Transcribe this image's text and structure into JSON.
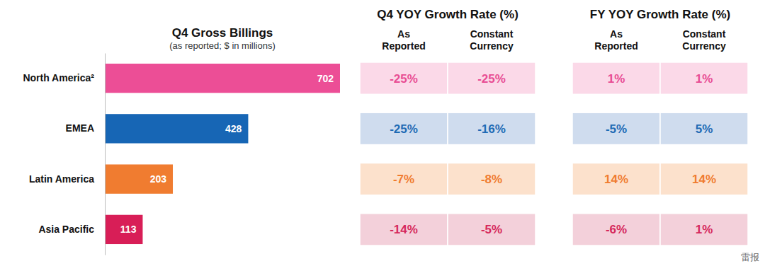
{
  "chart_data": {
    "type": "bar",
    "title": "Q4 Gross Billings",
    "subtitle": "(as reported; $ in millions)",
    "orientation": "horizontal",
    "categories": [
      "North America²",
      "EMEA",
      "Latin America",
      "Asia Pacific"
    ],
    "values": [
      702,
      428,
      203,
      113
    ],
    "colors": [
      "#ec4e96",
      "#1766b5",
      "#f07c30",
      "#d81e57"
    ],
    "xlim": [
      0,
      702
    ],
    "data_labels": true,
    "tick_labels": "y"
  },
  "table": {
    "groups": [
      {
        "title": "Q4 YOY Growth Rate (%)",
        "columns": [
          [
            "As",
            "Reported"
          ],
          [
            "Constant",
            "Currency"
          ]
        ],
        "rows": [
          [
            "-25%",
            "-25%"
          ],
          [
            "-25%",
            "-16%"
          ],
          [
            "-7%",
            "-8%"
          ],
          [
            "-14%",
            "-5%"
          ]
        ]
      },
      {
        "title": "FY YOY Growth Rate (%)",
        "columns": [
          [
            "As",
            "Reported"
          ],
          [
            "Constant",
            "Currency"
          ]
        ],
        "rows": [
          [
            "1%",
            "1%"
          ],
          [
            "-5%",
            "5%"
          ],
          [
            "14%",
            "14%"
          ],
          [
            "-6%",
            "1%"
          ]
        ]
      }
    ]
  },
  "watermark": "雷报"
}
